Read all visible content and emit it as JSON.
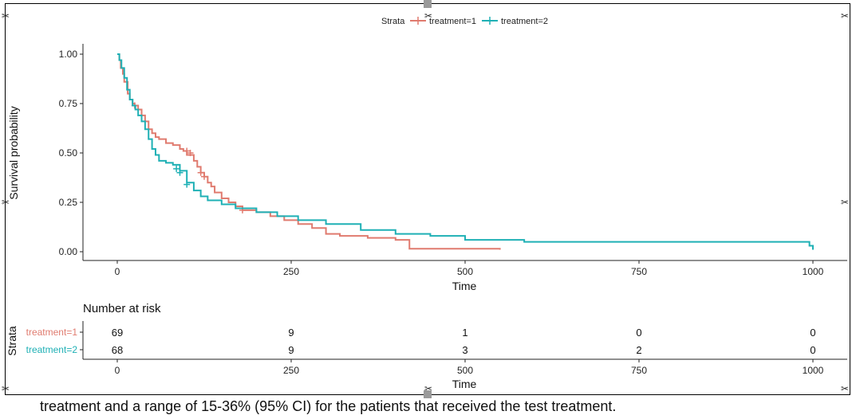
{
  "chart_data": {
    "type": "line",
    "subtype": "kaplan-meier",
    "xlabel": "Time",
    "ylabel": "Survival probability",
    "xlim": [
      0,
      1000
    ],
    "ylim": [
      0,
      1
    ],
    "x_ticks": [
      "0",
      "250",
      "500",
      "750",
      "1000"
    ],
    "x_tick_values": [
      0,
      250,
      500,
      750,
      1000
    ],
    "y_ticks": [
      "0.00",
      "0.25",
      "0.50",
      "0.75",
      "1.00"
    ],
    "y_tick_values": [
      0,
      0.25,
      0.5,
      0.75,
      1.0
    ],
    "legend": {
      "title": "Strata",
      "position": "top",
      "entries": [
        "treatment=1",
        "treatment=2"
      ]
    },
    "series": [
      {
        "name": "treatment=1",
        "color": "#e07b6f",
        "x": [
          0,
          3,
          5,
          8,
          10,
          15,
          18,
          22,
          25,
          30,
          35,
          40,
          45,
          50,
          55,
          60,
          70,
          80,
          90,
          95,
          100,
          110,
          115,
          120,
          125,
          130,
          135,
          140,
          150,
          160,
          170,
          180,
          200,
          220,
          240,
          260,
          280,
          300,
          320,
          360,
          400,
          420,
          500,
          550
        ],
        "y": [
          1.0,
          0.97,
          0.93,
          0.9,
          0.86,
          0.8,
          0.77,
          0.75,
          0.74,
          0.72,
          0.69,
          0.66,
          0.62,
          0.6,
          0.58,
          0.57,
          0.55,
          0.54,
          0.52,
          0.51,
          0.49,
          0.46,
          0.43,
          0.4,
          0.38,
          0.35,
          0.33,
          0.3,
          0.27,
          0.25,
          0.23,
          0.21,
          0.2,
          0.18,
          0.16,
          0.14,
          0.12,
          0.09,
          0.08,
          0.07,
          0.06,
          0.015,
          0.015,
          0.01
        ],
        "censored_x": [
          25,
          100,
          105,
          120,
          125,
          180
        ],
        "censored_y": [
          0.74,
          0.51,
          0.5,
          0.4,
          0.38,
          0.21
        ]
      },
      {
        "name": "treatment=2",
        "color": "#1fb0b5",
        "x": [
          0,
          3,
          6,
          10,
          14,
          18,
          22,
          26,
          30,
          35,
          40,
          45,
          50,
          55,
          60,
          70,
          80,
          90,
          100,
          110,
          120,
          130,
          150,
          170,
          200,
          230,
          260,
          300,
          350,
          400,
          450,
          500,
          550,
          585,
          700,
          800,
          900,
          995,
          1000
        ],
        "y": [
          1.0,
          0.97,
          0.93,
          0.88,
          0.82,
          0.77,
          0.74,
          0.72,
          0.69,
          0.66,
          0.62,
          0.57,
          0.52,
          0.49,
          0.46,
          0.45,
          0.44,
          0.41,
          0.35,
          0.31,
          0.28,
          0.26,
          0.24,
          0.22,
          0.2,
          0.18,
          0.16,
          0.14,
          0.11,
          0.09,
          0.08,
          0.06,
          0.06,
          0.05,
          0.05,
          0.05,
          0.05,
          0.03,
          0.01
        ],
        "censored_x": [
          85,
          90,
          100
        ],
        "censored_y": [
          0.42,
          0.4,
          0.34
        ]
      }
    ],
    "risk_table": {
      "title": "Number at risk",
      "ylabel": "Strata",
      "xlabel": "Time",
      "times": [
        0,
        250,
        500,
        750,
        1000
      ],
      "time_labels": [
        "0",
        "250",
        "500",
        "750",
        "1000"
      ],
      "rows": [
        {
          "name": "treatment=1",
          "color": "#e07b6f",
          "values": [
            "69",
            "9",
            "1",
            "0",
            "0"
          ]
        },
        {
          "name": "treatment=2",
          "color": "#1fb0b5",
          "values": [
            "68",
            "9",
            "3",
            "2",
            "0"
          ]
        }
      ]
    }
  },
  "caption": "treatment and a range of 15-36% (95% CI) for the patients that received the test treatment."
}
